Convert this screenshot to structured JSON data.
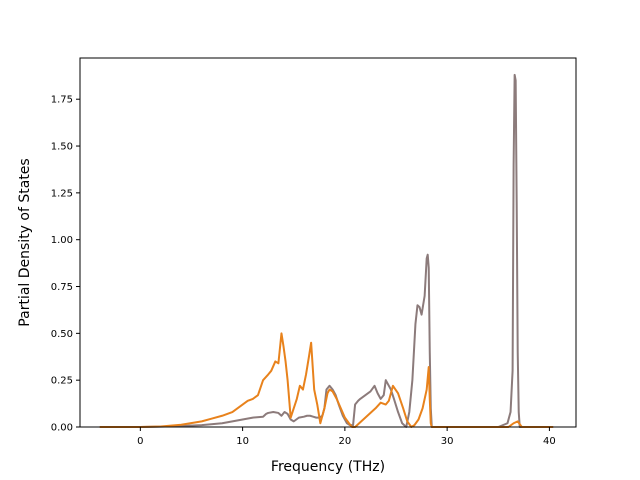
{
  "chart_data": {
    "type": "line",
    "xlabel": "Frequency (THz)",
    "ylabel": "Partial Density of States",
    "xlim": [
      -5.9,
      42.6
    ],
    "ylim": [
      0.0,
      1.97
    ],
    "xticks": [
      0,
      10,
      20,
      30,
      40
    ],
    "xtick_labels": [
      "0",
      "10",
      "20",
      "30",
      "40"
    ],
    "yticks": [
      0.0,
      0.25,
      0.5,
      0.75,
      1.0,
      1.25,
      1.5,
      1.75
    ],
    "ytick_labels": [
      "0.00",
      "0.25",
      "0.50",
      "0.75",
      "1.00",
      "1.25",
      "1.50",
      "1.75"
    ],
    "grid": false,
    "series": [
      {
        "color": "#8c7b7b",
        "x": [
          -3.9,
          0,
          2,
          4,
          6,
          8,
          10,
          11,
          12,
          12.3,
          12.5,
          13,
          13.5,
          13.8,
          14.1,
          14.4,
          14.7,
          15.0,
          15.5,
          16.0,
          16.3,
          16.6,
          16.9,
          17.2,
          17.5,
          17.8,
          18.0,
          18.2,
          18.5,
          18.8,
          19.1,
          19.4,
          19.8,
          20.2,
          20.5,
          20.8,
          21.0,
          21.3,
          21.5,
          22.0,
          22.5,
          22.9,
          23.2,
          23.5,
          23.8,
          24.0,
          24.2,
          24.5,
          24.8,
          25.2,
          25.6,
          26.0,
          26.3,
          26.6,
          26.9,
          27.1,
          27.3,
          27.5,
          27.8,
          28.0,
          28.1,
          28.2,
          28.3,
          28.4,
          28.5,
          29,
          30,
          33,
          35,
          35.9,
          36.2,
          36.4,
          36.5,
          36.6,
          36.7,
          36.8,
          36.9,
          37.0,
          37.1,
          37.3,
          38,
          40.3
        ],
        "y": [
          0.0,
          0.0,
          0.002,
          0.005,
          0.01,
          0.02,
          0.04,
          0.05,
          0.055,
          0.07,
          0.075,
          0.08,
          0.075,
          0.06,
          0.08,
          0.07,
          0.04,
          0.03,
          0.05,
          0.055,
          0.06,
          0.06,
          0.055,
          0.05,
          0.05,
          0.06,
          0.1,
          0.2,
          0.22,
          0.2,
          0.17,
          0.12,
          0.06,
          0.02,
          0.01,
          0.01,
          0.12,
          0.14,
          0.15,
          0.17,
          0.19,
          0.22,
          0.18,
          0.15,
          0.17,
          0.25,
          0.23,
          0.2,
          0.15,
          0.08,
          0.02,
          0.0,
          0.08,
          0.25,
          0.55,
          0.65,
          0.64,
          0.6,
          0.7,
          0.9,
          0.92,
          0.85,
          0.4,
          0.1,
          0.0,
          0.0,
          0.0,
          0.0,
          0.0,
          0.02,
          0.08,
          0.3,
          1.4,
          1.88,
          1.85,
          1.2,
          0.4,
          0.08,
          0.0,
          0.0,
          0.0,
          0.0
        ]
      },
      {
        "color": "#e8821c",
        "x": [
          -3.9,
          0,
          2,
          4,
          6,
          7,
          8,
          9,
          9.5,
          10,
          10.5,
          11,
          11.5,
          12,
          12.5,
          12.8,
          13.2,
          13.5,
          13.8,
          14.0,
          14.2,
          14.4,
          14.7,
          15.0,
          15.3,
          15.6,
          15.9,
          16.2,
          16.5,
          16.7,
          17.0,
          17.3,
          17.6,
          18.0,
          18.3,
          18.5,
          18.8,
          19.2,
          19.6,
          20.0,
          20.4,
          20.7,
          21.0,
          22.0,
          23.0,
          23.5,
          24.0,
          24.3,
          24.7,
          25.2,
          25.7,
          26.1,
          26.5,
          26.8,
          27.2,
          27.6,
          28.0,
          28.2,
          28.3,
          28.4,
          28.5,
          30,
          36.0,
          36.5,
          36.9,
          37.3,
          40.3
        ],
        "y": [
          0.0,
          0.0,
          0.003,
          0.012,
          0.03,
          0.045,
          0.06,
          0.08,
          0.1,
          0.12,
          0.14,
          0.15,
          0.17,
          0.25,
          0.28,
          0.3,
          0.35,
          0.34,
          0.5,
          0.43,
          0.35,
          0.25,
          0.05,
          0.1,
          0.15,
          0.22,
          0.2,
          0.28,
          0.38,
          0.45,
          0.2,
          0.12,
          0.02,
          0.1,
          0.18,
          0.2,
          0.19,
          0.15,
          0.1,
          0.05,
          0.02,
          0.0,
          0.0,
          0.05,
          0.1,
          0.13,
          0.12,
          0.14,
          0.22,
          0.18,
          0.1,
          0.03,
          0.0,
          0.01,
          0.04,
          0.1,
          0.2,
          0.32,
          0.15,
          0.02,
          0.0,
          0.0,
          0.0,
          0.02,
          0.03,
          0.0,
          0.0
        ]
      }
    ]
  }
}
